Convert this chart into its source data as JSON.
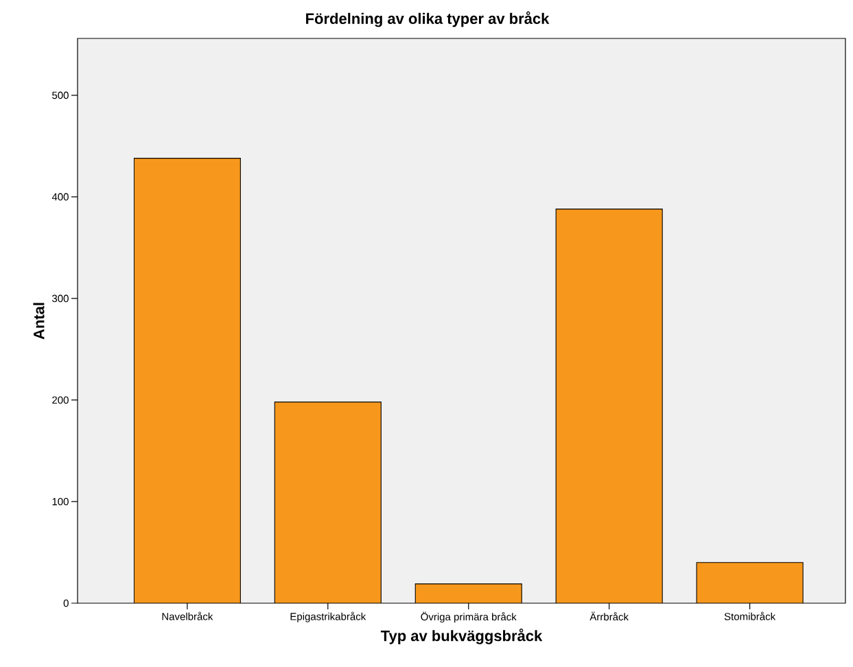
{
  "chart_data": {
    "type": "bar",
    "title": "Fördelning av olika typer av bråck",
    "xlabel": "Typ av bukväggsbråck",
    "ylabel": "Antal",
    "categories": [
      "Navelbråck",
      "Epigastrikabråck",
      "Övriga primära bråck",
      "Ärrbråck",
      "Stomibråck"
    ],
    "values": [
      438,
      198,
      19,
      388,
      40
    ],
    "color": "#f7981d",
    "ylim": [
      0,
      556
    ],
    "yticks": [
      0,
      100,
      200,
      300,
      400,
      500
    ],
    "grid": false
  }
}
